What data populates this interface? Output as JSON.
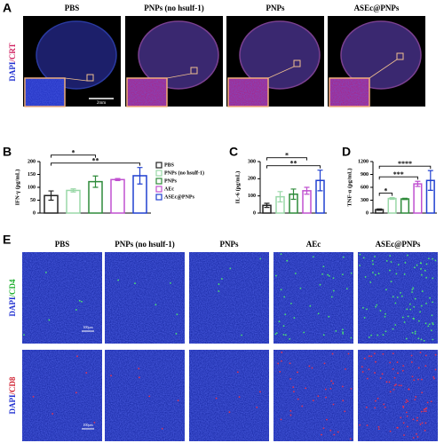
{
  "panel_a": {
    "label": "A",
    "columns": [
      "PBS",
      "PNPs (no hsulf-1)",
      "PNPs",
      "ASEc@PNPs"
    ],
    "channel": [
      "DAPI",
      "/CRT"
    ],
    "scale_bar": "2mm"
  },
  "chart_data": [
    {
      "label": "B",
      "type": "bar",
      "y_label": "IFN-γ (pg/mL)",
      "categories": [
        "PBS",
        "PNPs (no hsulf-1)",
        "PNPs",
        "AEc",
        "ASEc@PNPs"
      ],
      "colors": [
        "#222222",
        "#9ad8a8",
        "#2e8b3a",
        "#c050d0",
        "#2040d0"
      ],
      "values": [
        68,
        88,
        122,
        130,
        145
      ],
      "errors": [
        18,
        6,
        22,
        4,
        32
      ],
      "ylim": [
        0,
        200
      ],
      "yticks": [
        0,
        50,
        100,
        150,
        200
      ],
      "annotations": [
        "**",
        "*"
      ]
    },
    {
      "label": "C",
      "type": "bar",
      "y_label": "IL-6 (pg/mL)",
      "categories": [
        null,
        null,
        null,
        null,
        null
      ],
      "colors": [
        "#222222",
        "#9ad8a8",
        "#2e8b3a",
        "#c050d0",
        "#2040d0"
      ],
      "values": [
        45,
        95,
        110,
        130,
        190
      ],
      "errors": [
        12,
        30,
        30,
        20,
        60
      ],
      "ylim": [
        0,
        300
      ],
      "yticks": [
        0,
        100,
        200,
        300
      ],
      "annotations": [
        "**",
        "*"
      ]
    },
    {
      "label": "D",
      "type": "bar",
      "y_label": "TNF-α (pg/mL)",
      "categories": [
        null,
        null,
        null,
        null,
        null
      ],
      "colors": [
        "#222222",
        "#9ad8a8",
        "#2e8b3a",
        "#c050d0",
        "#2040d0"
      ],
      "values": [
        80,
        340,
        330,
        680,
        760
      ],
      "errors": [
        15,
        20,
        15,
        60,
        230
      ],
      "ylim": [
        0,
        1200
      ],
      "yticks": [
        0,
        300,
        600,
        900,
        1200
      ],
      "annotations": [
        "*",
        "***",
        "****"
      ]
    }
  ],
  "panel_e": {
    "label": "E",
    "columns": [
      "PBS",
      "PNPs (no hsulf-1)",
      "PNPs",
      "AEc",
      "ASEc@PNPs"
    ],
    "rows": [
      [
        "DAPI",
        "/CD4"
      ],
      [
        "DAPI",
        "/CD8"
      ]
    ],
    "scale_bar": "100μm"
  }
}
